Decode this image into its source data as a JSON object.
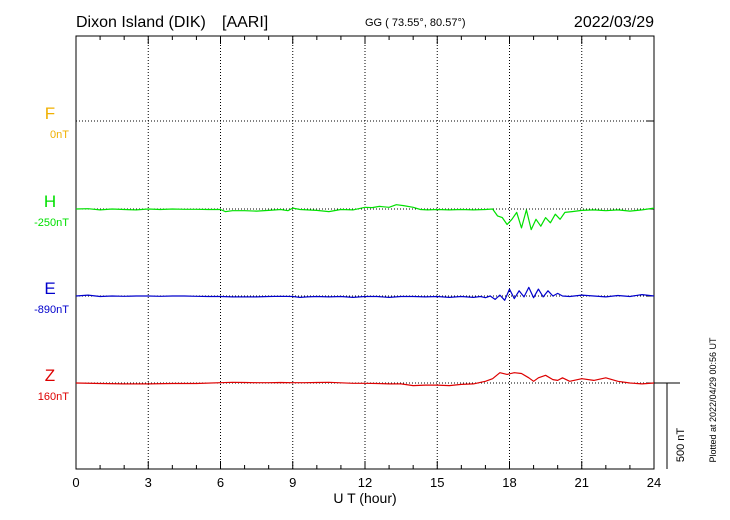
{
  "header": {
    "station": "Dixon Island (DIK)",
    "institute": "[AARI]",
    "coords": "GG ( 73.55°,  80.57°)",
    "date": "2022/03/29"
  },
  "footer_note": "Plotted at 2022/04/29 00:56 UT",
  "chart_data": {
    "type": "line",
    "title": "Dixon Island (DIK)  [AARI]",
    "xlabel": "U T (hour)",
    "ylabel": "",
    "xlim": [
      0,
      24
    ],
    "x_ticks": [
      0,
      3,
      6,
      9,
      12,
      15,
      18,
      21,
      24
    ],
    "scale_bar": {
      "label": "500 nT",
      "value_nT": 500
    },
    "grid": true,
    "colors": {
      "F": "#f0b000",
      "H": "#00e000",
      "E": "#0000cc",
      "Z": "#dd0000",
      "grid": "#000000"
    },
    "series": [
      {
        "name": "F",
        "baseline": "0nT",
        "x": [],
        "y": []
      },
      {
        "name": "H",
        "baseline": "-250nT",
        "x": [
          0,
          0.5,
          1,
          1.5,
          2,
          2.5,
          3,
          3.5,
          4,
          4.5,
          5,
          5.5,
          6,
          6.2,
          6.5,
          7,
          7.5,
          8,
          8.5,
          8.8,
          9,
          9.3,
          9.6,
          10,
          10.5,
          11,
          11.5,
          12,
          12.3,
          12.6,
          13,
          13.3,
          13.6,
          14,
          14.3,
          14.6,
          15,
          15.5,
          16,
          16.5,
          17,
          17.3,
          17.5,
          17.7,
          17.9,
          18.1,
          18.3,
          18.5,
          18.7,
          18.9,
          19.1,
          19.3,
          19.5,
          19.7,
          19.9,
          20.1,
          20.3,
          20.6,
          21,
          21.5,
          22,
          22.5,
          23,
          23.5,
          24
        ],
        "y": [
          0,
          2,
          -5,
          0,
          -3,
          -5,
          0,
          -3,
          0,
          -2,
          -2,
          -3,
          -3,
          -15,
          -10,
          -10,
          -12,
          -8,
          -3,
          -10,
          5,
          -3,
          -5,
          -8,
          -15,
          -3,
          -5,
          10,
          8,
          15,
          10,
          25,
          20,
          10,
          -3,
          -5,
          -3,
          -5,
          -3,
          -5,
          -3,
          0,
          -40,
          -50,
          -90,
          -60,
          -20,
          -110,
          -5,
          -120,
          -60,
          -100,
          -50,
          -80,
          -30,
          -60,
          -20,
          -15,
          -8,
          -5,
          -10,
          -5,
          -12,
          -5,
          5
        ]
      },
      {
        "name": "E",
        "baseline": "-890nT",
        "x": [
          0,
          0.5,
          1,
          1.5,
          2,
          2.5,
          3,
          3.5,
          4,
          4.5,
          5,
          5.5,
          6,
          6.5,
          7,
          7.5,
          8,
          8.5,
          9,
          9.3,
          9.6,
          10,
          10.5,
          11,
          11.5,
          12,
          12.5,
          13,
          13.5,
          14,
          14.5,
          15,
          15.5,
          16,
          16.5,
          16.8,
          17,
          17.2,
          17.4,
          17.6,
          17.8,
          18,
          18.2,
          18.4,
          18.6,
          18.8,
          19,
          19.2,
          19.4,
          19.6,
          19.8,
          20,
          20.2,
          20.5,
          21,
          21.5,
          22,
          22.5,
          23,
          23.5,
          24
        ],
        "y": [
          0,
          5,
          -3,
          0,
          -2,
          0,
          0,
          -2,
          0,
          0,
          -2,
          -3,
          -3,
          -5,
          -5,
          -5,
          -3,
          -2,
          -3,
          -8,
          -5,
          -3,
          -5,
          -3,
          -8,
          -3,
          -3,
          -8,
          -3,
          -3,
          -5,
          -3,
          -8,
          -3,
          -8,
          -3,
          -10,
          0,
          -20,
          5,
          -25,
          40,
          -15,
          30,
          -5,
          50,
          -10,
          40,
          -5,
          30,
          0,
          15,
          0,
          -3,
          5,
          0,
          -5,
          3,
          -3,
          8,
          0
        ]
      },
      {
        "name": "Z",
        "baseline": "160nT",
        "x": [
          0,
          1,
          2,
          3,
          4,
          5,
          6,
          6.5,
          7,
          7.5,
          8,
          8.5,
          9,
          9.5,
          10,
          10.5,
          11,
          11.5,
          12,
          12.5,
          13,
          13.5,
          14,
          14.5,
          15,
          15.5,
          16,
          16.5,
          17,
          17.3,
          17.6,
          17.9,
          18.2,
          18.5,
          18.8,
          19,
          19.2,
          19.5,
          19.8,
          20,
          20.2,
          20.5,
          21,
          21.5,
          22,
          22.5,
          23,
          23.5,
          24
        ],
        "y": [
          0,
          -3,
          -5,
          -5,
          -3,
          -3,
          2,
          4,
          3,
          2,
          2,
          3,
          2,
          2,
          3,
          4,
          1,
          -2,
          -2,
          -3,
          -5,
          -5,
          -15,
          -12,
          -12,
          -15,
          -8,
          -5,
          10,
          25,
          60,
          50,
          60,
          55,
          30,
          10,
          30,
          45,
          20,
          15,
          30,
          10,
          25,
          15,
          30,
          10,
          0,
          -5,
          0
        ]
      }
    ]
  }
}
